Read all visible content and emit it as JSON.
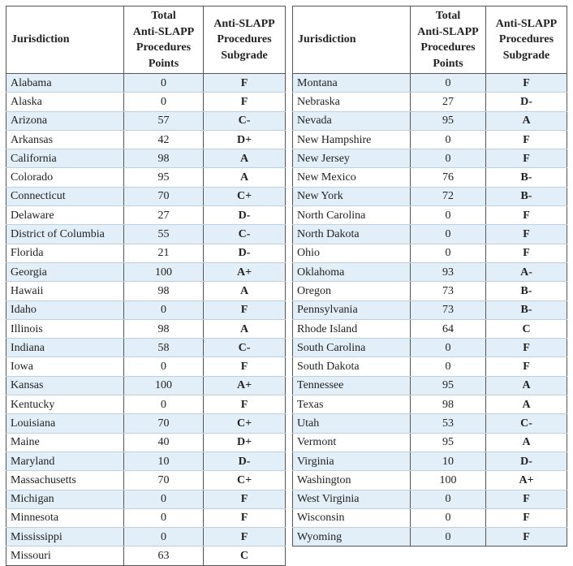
{
  "headers": {
    "jurisdiction": "Jurisdiction",
    "points_line1": "Total",
    "points_line2": "Anti-SLAPP",
    "points_line3": "Procedures",
    "points_line4": "Points",
    "grade_line1": "Anti-SLAPP",
    "grade_line2": "Procedures",
    "grade_line3": "Subgrade"
  },
  "left_rows": [
    {
      "name": "Alabama",
      "points": "0",
      "grade": "F"
    },
    {
      "name": "Alaska",
      "points": "0",
      "grade": "F"
    },
    {
      "name": "Arizona",
      "points": "57",
      "grade": "C-"
    },
    {
      "name": "Arkansas",
      "points": "42",
      "grade": "D+"
    },
    {
      "name": "California",
      "points": "98",
      "grade": "A"
    },
    {
      "name": "Colorado",
      "points": "95",
      "grade": "A"
    },
    {
      "name": "Connecticut",
      "points": "70",
      "grade": "C+"
    },
    {
      "name": "Delaware",
      "points": "27",
      "grade": "D-"
    },
    {
      "name": "District of Columbia",
      "points": "55",
      "grade": "C-"
    },
    {
      "name": "Florida",
      "points": "21",
      "grade": "D-"
    },
    {
      "name": "Georgia",
      "points": "100",
      "grade": "A+"
    },
    {
      "name": "Hawaii",
      "points": "98",
      "grade": "A"
    },
    {
      "name": "Idaho",
      "points": "0",
      "grade": "F"
    },
    {
      "name": "Illinois",
      "points": "98",
      "grade": "A"
    },
    {
      "name": "Indiana",
      "points": "58",
      "grade": "C-"
    },
    {
      "name": "Iowa",
      "points": "0",
      "grade": "F"
    },
    {
      "name": "Kansas",
      "points": "100",
      "grade": "A+"
    },
    {
      "name": "Kentucky",
      "points": "0",
      "grade": "F"
    },
    {
      "name": "Louisiana",
      "points": "70",
      "grade": "C+"
    },
    {
      "name": "Maine",
      "points": "40",
      "grade": "D+"
    },
    {
      "name": "Maryland",
      "points": "10",
      "grade": "D-"
    },
    {
      "name": "Massachusetts",
      "points": "70",
      "grade": "C+"
    },
    {
      "name": "Michigan",
      "points": "0",
      "grade": "F"
    },
    {
      "name": "Minnesota",
      "points": "0",
      "grade": "F"
    },
    {
      "name": "Mississippi",
      "points": "0",
      "grade": "F"
    },
    {
      "name": "Missouri",
      "points": "63",
      "grade": "C"
    }
  ],
  "right_rows": [
    {
      "name": "Montana",
      "points": "0",
      "grade": "F"
    },
    {
      "name": "Nebraska",
      "points": "27",
      "grade": "D-"
    },
    {
      "name": "Nevada",
      "points": "95",
      "grade": "A"
    },
    {
      "name": "New Hampshire",
      "points": "0",
      "grade": "F"
    },
    {
      "name": "New Jersey",
      "points": "0",
      "grade": "F"
    },
    {
      "name": "New Mexico",
      "points": "76",
      "grade": "B-"
    },
    {
      "name": "New York",
      "points": "72",
      "grade": "B-"
    },
    {
      "name": "North Carolina",
      "points": "0",
      "grade": "F"
    },
    {
      "name": "North Dakota",
      "points": "0",
      "grade": "F"
    },
    {
      "name": "Ohio",
      "points": "0",
      "grade": "F"
    },
    {
      "name": "Oklahoma",
      "points": "93",
      "grade": "A-"
    },
    {
      "name": "Oregon",
      "points": "73",
      "grade": "B-"
    },
    {
      "name": "Pennsylvania",
      "points": "73",
      "grade": "B-"
    },
    {
      "name": "Rhode Island",
      "points": "64",
      "grade": "C"
    },
    {
      "name": "South Carolina",
      "points": "0",
      "grade": "F"
    },
    {
      "name": "South Dakota",
      "points": "0",
      "grade": "F"
    },
    {
      "name": "Tennessee",
      "points": "95",
      "grade": "A"
    },
    {
      "name": "Texas",
      "points": "98",
      "grade": "A"
    },
    {
      "name": "Utah",
      "points": "53",
      "grade": "C-"
    },
    {
      "name": "Vermont",
      "points": "95",
      "grade": "A"
    },
    {
      "name": "Virginia",
      "points": "10",
      "grade": "D-"
    },
    {
      "name": "Washington",
      "points": "100",
      "grade": "A+"
    },
    {
      "name": "West Virginia",
      "points": "0",
      "grade": "F"
    },
    {
      "name": "Wisconsin",
      "points": "0",
      "grade": "F"
    },
    {
      "name": "Wyoming",
      "points": "0",
      "grade": "F"
    }
  ],
  "colors": {
    "stripe": "#e2eef8",
    "border": "#555555"
  }
}
